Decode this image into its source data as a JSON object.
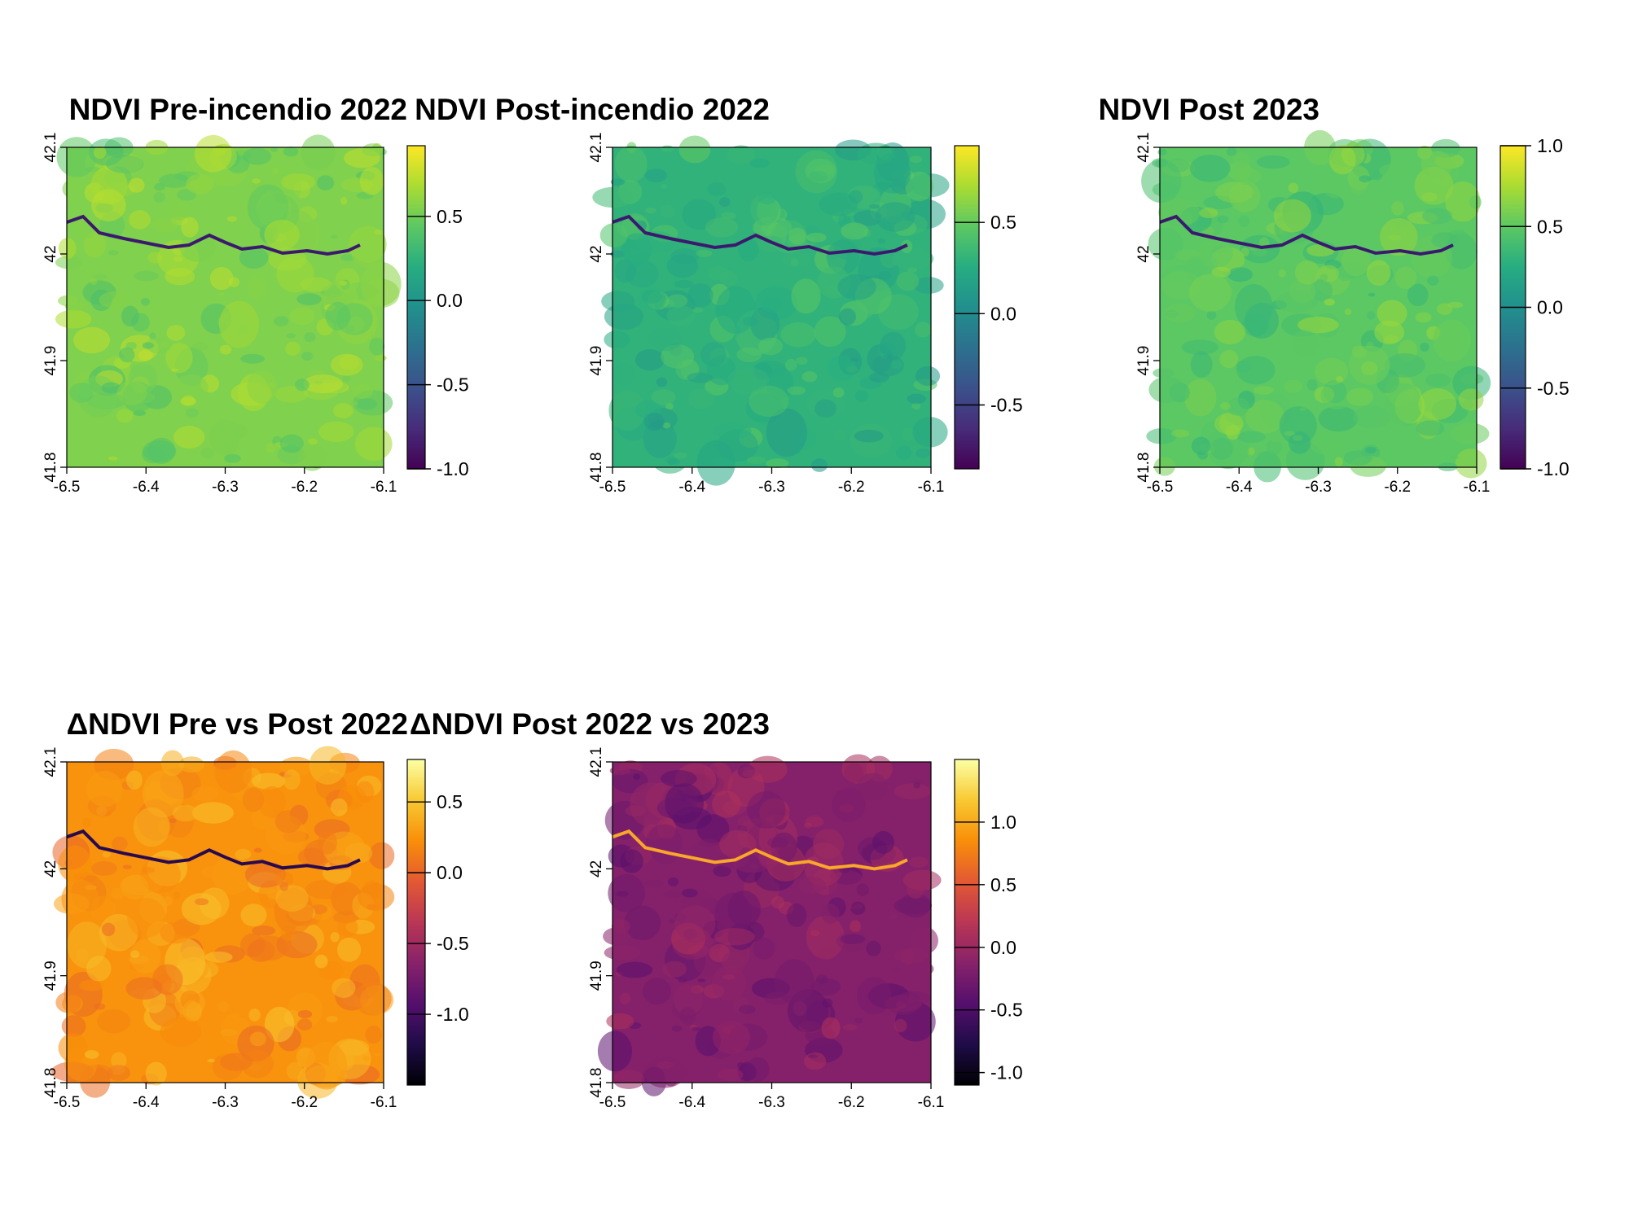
{
  "chart_data": [
    {
      "type": "heatmap",
      "title": "NDVI Pre-incendio 2022",
      "colormap": "viridis",
      "x_ticks": [
        "-6.5",
        "-6.4",
        "-6.3",
        "-6.2",
        "-6.1"
      ],
      "y_ticks": [
        "41.8",
        "41.9",
        "42",
        "42.1"
      ],
      "xlim": [
        -6.5,
        -6.1
      ],
      "ylim": [
        41.8,
        42.1
      ],
      "colorbar": {
        "ticks": [
          "-1.0",
          "-0.5",
          "0.0",
          "0.5"
        ],
        "tick_values": [
          -1.0,
          -0.5,
          0.0,
          0.5
        ],
        "range": [
          -1.0,
          0.92
        ]
      },
      "dominant_value": 0.55
    },
    {
      "type": "heatmap",
      "title": "NDVI Post-incendio 2022",
      "colormap": "viridis",
      "x_ticks": [
        "-6.5",
        "-6.4",
        "-6.3",
        "-6.2",
        "-6.1"
      ],
      "y_ticks": [
        "41.8",
        "41.9",
        "42",
        "42.1"
      ],
      "xlim": [
        -6.5,
        -6.1
      ],
      "ylim": [
        41.8,
        42.1
      ],
      "colorbar": {
        "ticks": [
          "-0.5",
          "0.0",
          "0.5"
        ],
        "tick_values": [
          -0.5,
          0.0,
          0.5
        ],
        "range": [
          -0.85,
          0.92
        ]
      },
      "dominant_value": 0.3
    },
    {
      "type": "heatmap",
      "title": "NDVI Post 2023",
      "colormap": "viridis",
      "x_ticks": [
        "-6.5",
        "-6.4",
        "-6.3",
        "-6.2",
        "-6.1"
      ],
      "y_ticks": [
        "41.8",
        "41.9",
        "42",
        "42.1"
      ],
      "xlim": [
        -6.5,
        -6.1
      ],
      "ylim": [
        41.8,
        42.1
      ],
      "colorbar": {
        "ticks": [
          "-1.0",
          "-0.5",
          "0.0",
          "0.5",
          "1.0"
        ],
        "tick_values": [
          -1.0,
          -0.5,
          0.0,
          0.5,
          1.0
        ],
        "range": [
          -1.0,
          1.0
        ]
      },
      "dominant_value": 0.5
    },
    {
      "type": "heatmap",
      "title": "ΔNDVI Pre vs Post 2022",
      "colormap": "inferno",
      "x_ticks": [
        "-6.5",
        "-6.4",
        "-6.3",
        "-6.2",
        "-6.1"
      ],
      "y_ticks": [
        "41.8",
        "41.9",
        "42",
        "42.1"
      ],
      "xlim": [
        -6.5,
        -6.1
      ],
      "ylim": [
        41.8,
        42.1
      ],
      "colorbar": {
        "ticks": [
          "-1.0",
          "-0.5",
          "0.0",
          "0.5"
        ],
        "tick_values": [
          -1.0,
          -0.5,
          0.0,
          0.5
        ],
        "range": [
          -1.5,
          0.8
        ]
      },
      "dominant_value": 0.25
    },
    {
      "type": "heatmap",
      "title": "ΔNDVI Post 2022 vs 2023",
      "colormap": "inferno",
      "x_ticks": [
        "-6.5",
        "-6.4",
        "-6.3",
        "-6.2",
        "-6.1"
      ],
      "y_ticks": [
        "41.8",
        "41.9",
        "42",
        "42.1"
      ],
      "xlim": [
        -6.5,
        -6.1
      ],
      "ylim": [
        41.8,
        42.1
      ],
      "colorbar": {
        "ticks": [
          "-1.0",
          "-0.5",
          "0.0",
          "0.5",
          "1.0"
        ],
        "tick_values": [
          -1.0,
          -0.5,
          0.0,
          0.5,
          1.0
        ],
        "range": [
          -1.1,
          1.5
        ]
      },
      "dominant_value": -0.15
    }
  ]
}
